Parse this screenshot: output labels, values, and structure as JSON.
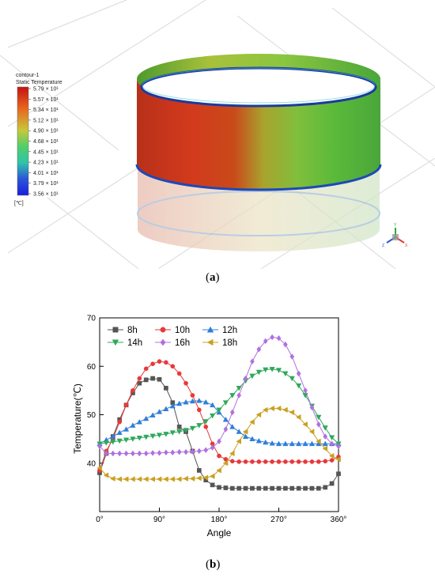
{
  "captions": {
    "a": "a",
    "b": "b"
  },
  "contour_legend": {
    "title_line1": "contour-1",
    "title_line2": "Static Temperature",
    "levels": [
      "5.79 × 10¹",
      "5.57 × 10¹",
      "5.34 × 10¹",
      "5.12 × 10¹",
      "4.90 × 10¹",
      "4.68 × 10¹",
      "4.45 × 10¹",
      "4.23 × 10¹",
      "4.01 × 10¹",
      "3.79 × 10¹",
      "3.56 × 10¹"
    ],
    "unit": "[℃]",
    "colors": [
      "#c4140f",
      "#d8401e",
      "#e8661f",
      "#e89b2c",
      "#c7c83a",
      "#8fd046",
      "#4fcf6a",
      "#2fc4a8",
      "#2f8fd0",
      "#2a55d8",
      "#1a1ee0"
    ]
  },
  "axis_glyphs": {
    "y": "Y",
    "x": "X",
    "z": "Z"
  },
  "chart_data": {
    "type": "line",
    "title": "",
    "xlabel": "Angle",
    "ylabel": "Temperature(℃)",
    "xlim": [
      0,
      360
    ],
    "ylim": [
      30,
      70
    ],
    "xticks": [
      0,
      90,
      180,
      270,
      360
    ],
    "xtick_labels": [
      "0°",
      "90°",
      "180°",
      "270°",
      "360°"
    ],
    "yticks": [
      40,
      50,
      60,
      70
    ],
    "ytick_labels": [
      "40",
      "50",
      "60",
      "70"
    ],
    "legend_position": "top",
    "grid": false,
    "x": [
      0,
      10,
      20,
      30,
      40,
      50,
      60,
      70,
      80,
      90,
      100,
      110,
      120,
      130,
      140,
      150,
      160,
      170,
      180,
      190,
      200,
      210,
      220,
      230,
      240,
      250,
      260,
      270,
      280,
      290,
      300,
      310,
      320,
      330,
      340,
      350,
      360
    ],
    "series": [
      {
        "name": "8h",
        "color": "#555555",
        "marker": "square",
        "values": [
          38.0,
          42.0,
          45.5,
          49.0,
          52.0,
          54.5,
          56.5,
          57.2,
          57.5,
          57.3,
          55.5,
          52.5,
          47.5,
          46.5,
          42.5,
          38.5,
          36.5,
          35.5,
          35.0,
          34.9,
          34.8,
          34.8,
          34.8,
          34.8,
          34.8,
          34.8,
          34.8,
          34.8,
          34.8,
          34.8,
          34.8,
          34.8,
          34.8,
          34.8,
          35.0,
          35.8,
          37.8
        ]
      },
      {
        "name": "10h",
        "color": "#e8393a",
        "marker": "circle",
        "values": [
          38.5,
          42.5,
          45.0,
          48.5,
          52.0,
          55.0,
          57.5,
          59.5,
          60.5,
          61.0,
          60.8,
          60.0,
          58.5,
          56.5,
          54.0,
          51.0,
          47.5,
          44.0,
          41.5,
          40.8,
          40.4,
          40.3,
          40.3,
          40.3,
          40.3,
          40.3,
          40.3,
          40.3,
          40.3,
          40.3,
          40.3,
          40.3,
          40.3,
          40.3,
          40.4,
          40.6,
          41.3
        ]
      },
      {
        "name": "12h",
        "color": "#2f7fd8",
        "marker": "triangle-up",
        "values": [
          44.0,
          44.8,
          45.5,
          46.3,
          47.0,
          47.8,
          48.5,
          49.2,
          49.9,
          50.6,
          51.2,
          51.8,
          52.3,
          52.6,
          52.8,
          52.9,
          52.6,
          52.0,
          50.5,
          49.0,
          47.5,
          46.5,
          45.5,
          45.0,
          44.6,
          44.3,
          44.1,
          44.0,
          44.0,
          44.0,
          44.0,
          44.0,
          44.0,
          44.0,
          44.0,
          44.0,
          44.0
        ]
      },
      {
        "name": "14h",
        "color": "#2ea85a",
        "marker": "triangle-down",
        "values": [
          44.0,
          44.2,
          44.4,
          44.6,
          44.8,
          45.0,
          45.2,
          45.4,
          45.6,
          45.8,
          46.0,
          46.3,
          46.5,
          46.8,
          47.2,
          47.8,
          48.6,
          49.8,
          51.0,
          52.5,
          54.0,
          55.5,
          57.0,
          58.0,
          58.8,
          59.3,
          59.4,
          59.2,
          58.5,
          57.5,
          56.0,
          54.0,
          51.8,
          49.5,
          47.3,
          45.3,
          44.0
        ]
      },
      {
        "name": "16h",
        "color": "#b070e0",
        "marker": "diamond",
        "values": [
          43.5,
          42.0,
          42.0,
          42.0,
          42.0,
          42.0,
          42.0,
          42.0,
          42.1,
          42.1,
          42.2,
          42.2,
          42.3,
          42.3,
          42.4,
          42.5,
          42.7,
          43.2,
          44.5,
          47.0,
          50.5,
          54.0,
          57.5,
          61.0,
          63.5,
          65.2,
          66.0,
          65.8,
          64.5,
          62.0,
          58.5,
          55.0,
          51.5,
          48.0,
          45.5,
          44.0,
          43.5
        ]
      },
      {
        "name": "18h",
        "color": "#c9a020",
        "marker": "triangle-left",
        "values": [
          39.0,
          37.5,
          36.8,
          36.7,
          36.7,
          36.7,
          36.7,
          36.7,
          36.7,
          36.7,
          36.7,
          36.7,
          36.7,
          36.8,
          36.8,
          36.9,
          37.0,
          37.3,
          38.5,
          40.0,
          42.0,
          44.5,
          46.5,
          48.5,
          50.0,
          51.0,
          51.3,
          51.3,
          51.0,
          50.5,
          49.5,
          48.0,
          46.5,
          44.5,
          43.0,
          41.5,
          40.8
        ]
      }
    ]
  }
}
